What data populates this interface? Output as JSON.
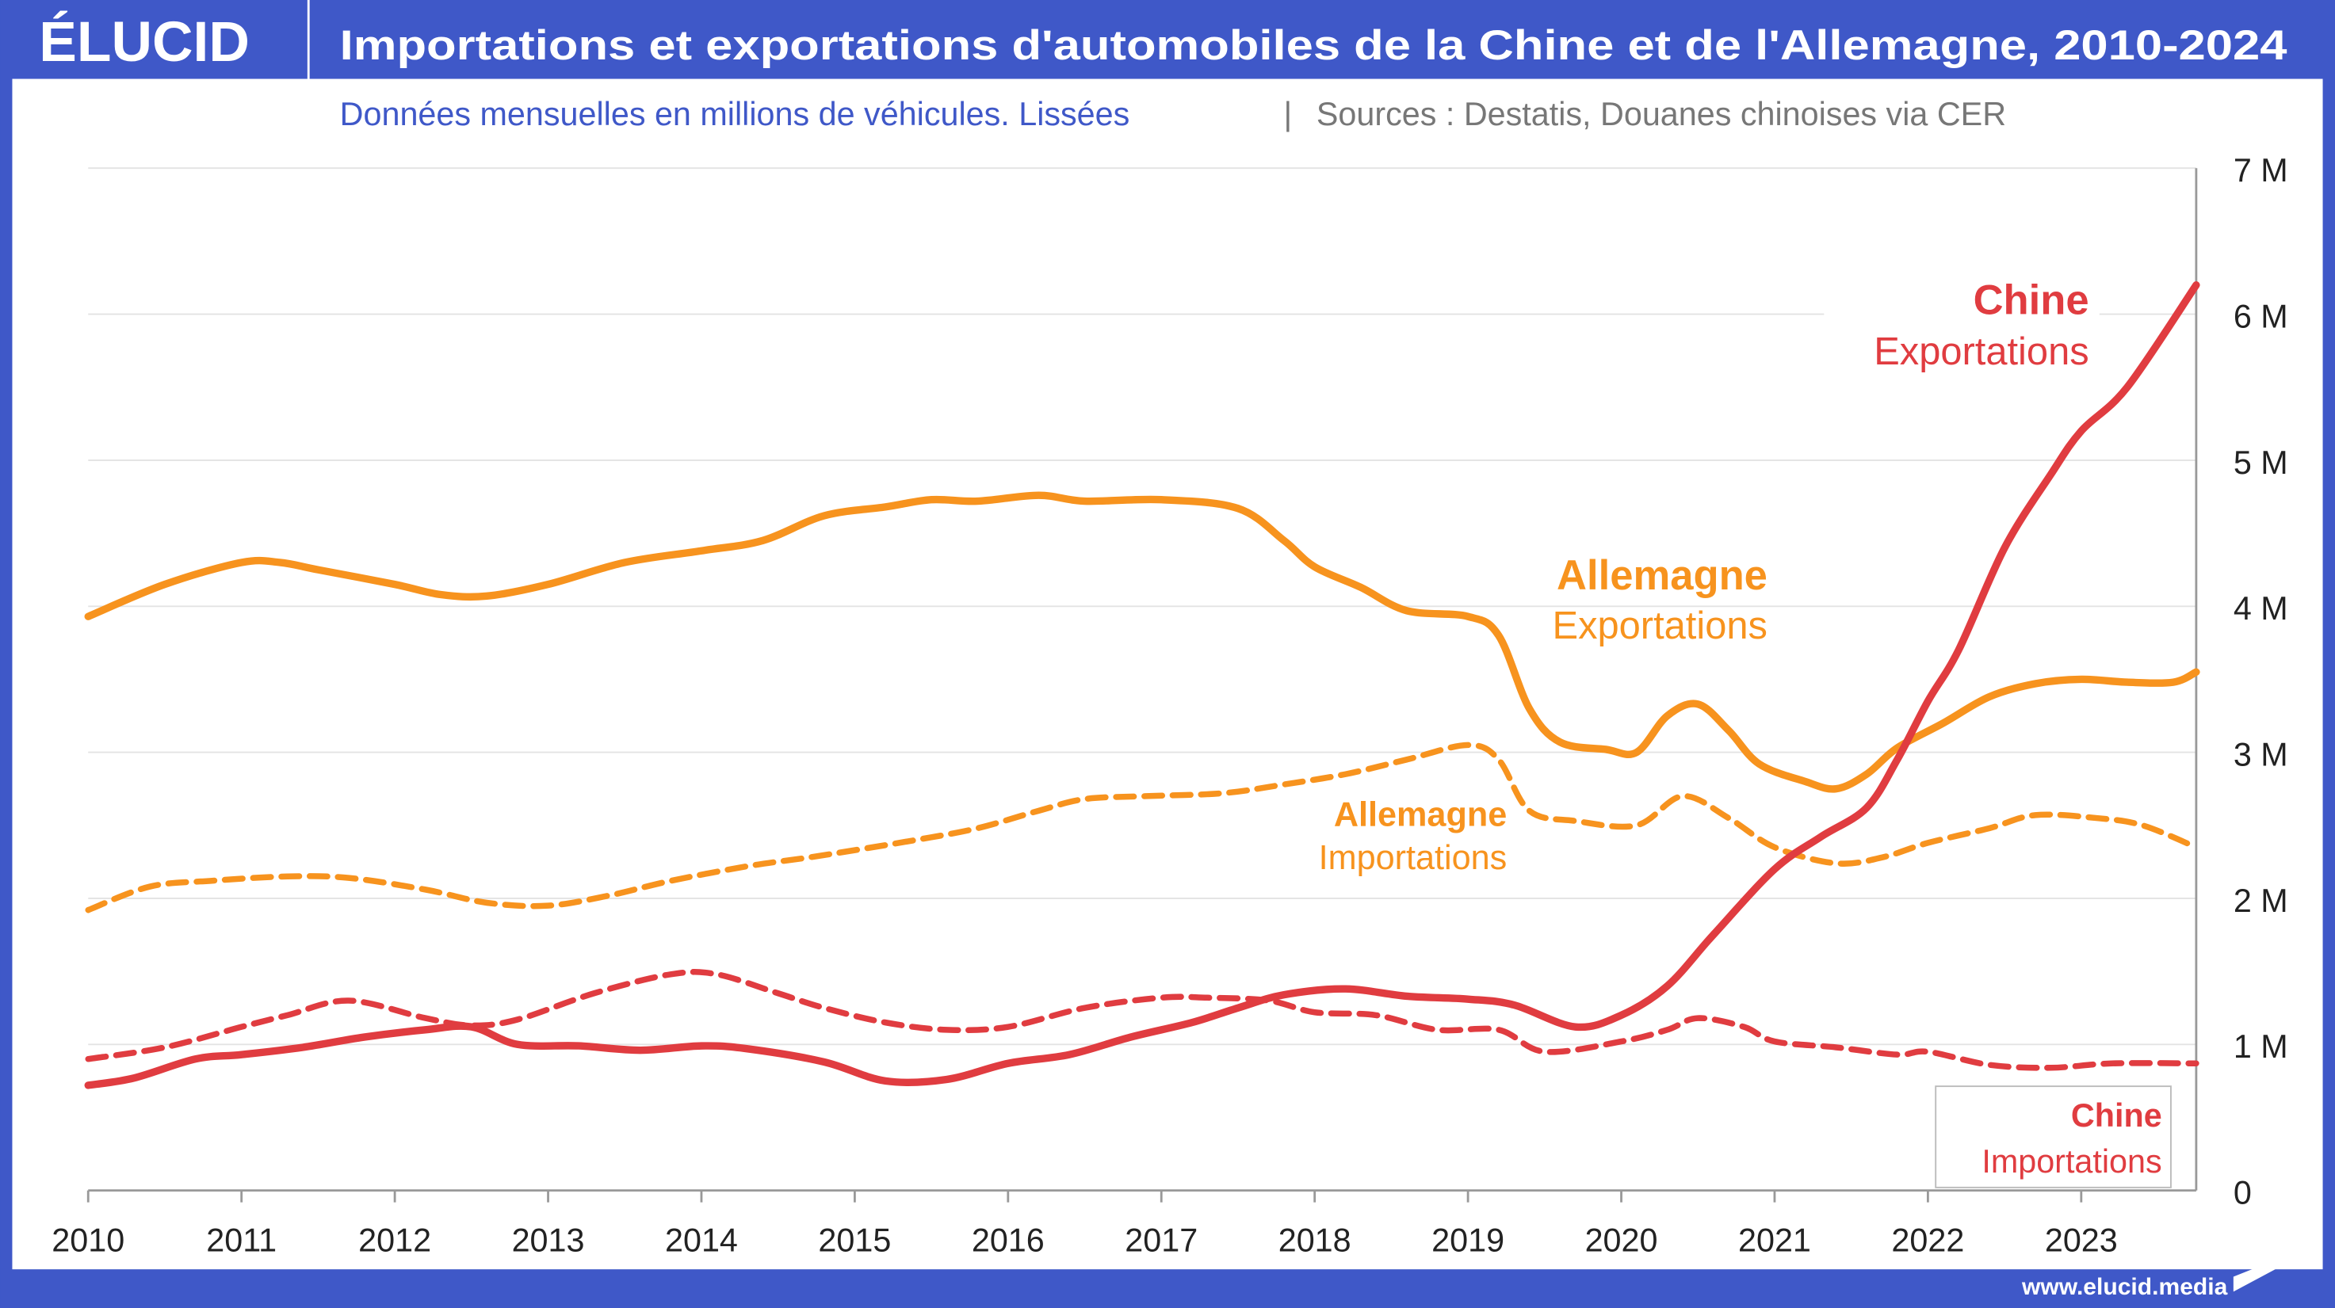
{
  "header": {
    "logo": "ÉLUCID",
    "title": "Importations et exportations d'automobiles de la Chine et de l'Allemagne, 2010-2024",
    "subtitle": "Données mensuelles en millions de véhicules. Lissées",
    "separator": "|",
    "sources": "Sources : Destatis, Douanes chinoises via CER"
  },
  "footer": {
    "url": "www.elucid.media"
  },
  "colors": {
    "frame": "#3f58c8",
    "germany": "#f7931e",
    "china": "#e03c40",
    "grid": "#e3e3e3",
    "subtitle": "#3f58c8",
    "sources": "#777777"
  },
  "chart_data": {
    "type": "line",
    "title": "Importations et exportations d'automobiles de la Chine et de l'Allemagne, 2010-2024",
    "xlabel": "",
    "ylabel": "",
    "xlim": [
      2010,
      2023.75
    ],
    "ylim": [
      0,
      7
    ],
    "grid": true,
    "y_axis_side": "right",
    "x_ticks": [
      "2010",
      "2011",
      "2012",
      "2013",
      "2014",
      "2015",
      "2016",
      "2017",
      "2018",
      "2019",
      "2020",
      "2021",
      "2022",
      "2023"
    ],
    "y_ticks": [
      "0",
      "1 M",
      "2 M",
      "3 M",
      "4 M",
      "5 M",
      "6 M",
      "7 M"
    ],
    "series": [
      {
        "name": "Allemagne",
        "sub": "Exportations",
        "color": "#f7931e",
        "dashed": false,
        "points": [
          [
            2010,
            3.93
          ],
          [
            2010.5,
            4.15
          ],
          [
            2011,
            4.3
          ],
          [
            2011.25,
            4.3
          ],
          [
            2011.5,
            4.25
          ],
          [
            2012,
            4.15
          ],
          [
            2012.3,
            4.08
          ],
          [
            2012.6,
            4.07
          ],
          [
            2013,
            4.15
          ],
          [
            2013.5,
            4.3
          ],
          [
            2014,
            4.38
          ],
          [
            2014.4,
            4.45
          ],
          [
            2014.8,
            4.62
          ],
          [
            2015.2,
            4.68
          ],
          [
            2015.5,
            4.73
          ],
          [
            2015.8,
            4.72
          ],
          [
            2016.2,
            4.76
          ],
          [
            2016.5,
            4.72
          ],
          [
            2017,
            4.73
          ],
          [
            2017.5,
            4.67
          ],
          [
            2017.8,
            4.45
          ],
          [
            2018,
            4.27
          ],
          [
            2018.3,
            4.13
          ],
          [
            2018.6,
            3.97
          ],
          [
            2019,
            3.93
          ],
          [
            2019.2,
            3.8
          ],
          [
            2019.4,
            3.3
          ],
          [
            2019.6,
            3.07
          ],
          [
            2019.9,
            3.02
          ],
          [
            2020.1,
            3.0
          ],
          [
            2020.3,
            3.25
          ],
          [
            2020.5,
            3.33
          ],
          [
            2020.7,
            3.15
          ],
          [
            2020.9,
            2.92
          ],
          [
            2021.2,
            2.8
          ],
          [
            2021.4,
            2.75
          ],
          [
            2021.6,
            2.85
          ],
          [
            2021.8,
            3.03
          ],
          [
            2022.1,
            3.2
          ],
          [
            2022.4,
            3.38
          ],
          [
            2022.7,
            3.47
          ],
          [
            2023,
            3.5
          ],
          [
            2023.3,
            3.48
          ],
          [
            2023.6,
            3.48
          ],
          [
            2023.75,
            3.55
          ]
        ]
      },
      {
        "name": "Allemagne",
        "sub": "Importations",
        "color": "#f7931e",
        "dashed": true,
        "points": [
          [
            2010,
            1.92
          ],
          [
            2010.4,
            2.08
          ],
          [
            2010.8,
            2.12
          ],
          [
            2011.3,
            2.15
          ],
          [
            2011.7,
            2.14
          ],
          [
            2012.2,
            2.06
          ],
          [
            2012.6,
            1.97
          ],
          [
            2013,
            1.95
          ],
          [
            2013.4,
            2.02
          ],
          [
            2013.8,
            2.12
          ],
          [
            2014.3,
            2.22
          ],
          [
            2014.7,
            2.28
          ],
          [
            2015,
            2.33
          ],
          [
            2015.4,
            2.4
          ],
          [
            2015.8,
            2.48
          ],
          [
            2016.2,
            2.6
          ],
          [
            2016.5,
            2.68
          ],
          [
            2016.9,
            2.7
          ],
          [
            2017.4,
            2.72
          ],
          [
            2017.8,
            2.78
          ],
          [
            2018.2,
            2.85
          ],
          [
            2018.6,
            2.95
          ],
          [
            2019,
            3.05
          ],
          [
            2019.2,
            2.95
          ],
          [
            2019.4,
            2.6
          ],
          [
            2019.7,
            2.53
          ],
          [
            2020.1,
            2.5
          ],
          [
            2020.4,
            2.7
          ],
          [
            2020.7,
            2.55
          ],
          [
            2021,
            2.35
          ],
          [
            2021.4,
            2.24
          ],
          [
            2021.7,
            2.28
          ],
          [
            2022,
            2.38
          ],
          [
            2022.4,
            2.48
          ],
          [
            2022.7,
            2.57
          ],
          [
            2023.1,
            2.55
          ],
          [
            2023.4,
            2.5
          ],
          [
            2023.75,
            2.35
          ]
        ]
      },
      {
        "name": "Chine",
        "sub": "Exportations",
        "color": "#e03c40",
        "dashed": false,
        "points": [
          [
            2010,
            0.72
          ],
          [
            2010.3,
            0.77
          ],
          [
            2010.7,
            0.9
          ],
          [
            2011,
            0.93
          ],
          [
            2011.4,
            0.98
          ],
          [
            2011.8,
            1.05
          ],
          [
            2012.2,
            1.1
          ],
          [
            2012.5,
            1.12
          ],
          [
            2012.8,
            1.0
          ],
          [
            2013.2,
            0.99
          ],
          [
            2013.6,
            0.96
          ],
          [
            2014,
            0.99
          ],
          [
            2014.3,
            0.97
          ],
          [
            2014.8,
            0.88
          ],
          [
            2015.2,
            0.75
          ],
          [
            2015.6,
            0.76
          ],
          [
            2016,
            0.87
          ],
          [
            2016.4,
            0.93
          ],
          [
            2016.8,
            1.05
          ],
          [
            2017.2,
            1.15
          ],
          [
            2017.5,
            1.25
          ],
          [
            2017.8,
            1.34
          ],
          [
            2018.2,
            1.38
          ],
          [
            2018.6,
            1.33
          ],
          [
            2019,
            1.31
          ],
          [
            2019.3,
            1.27
          ],
          [
            2019.7,
            1.12
          ],
          [
            2020,
            1.2
          ],
          [
            2020.3,
            1.4
          ],
          [
            2020.6,
            1.75
          ],
          [
            2021,
            2.2
          ],
          [
            2021.3,
            2.42
          ],
          [
            2021.6,
            2.62
          ],
          [
            2021.8,
            2.95
          ],
          [
            2022,
            3.35
          ],
          [
            2022.2,
            3.7
          ],
          [
            2022.5,
            4.4
          ],
          [
            2022.8,
            4.9
          ],
          [
            2023,
            5.2
          ],
          [
            2023.3,
            5.5
          ],
          [
            2023.75,
            6.2
          ]
        ]
      },
      {
        "name": "Chine",
        "sub": "Importations",
        "color": "#e03c40",
        "dashed": true,
        "points": [
          [
            2010,
            0.9
          ],
          [
            2010.5,
            0.98
          ],
          [
            2011,
            1.12
          ],
          [
            2011.3,
            1.2
          ],
          [
            2011.7,
            1.3
          ],
          [
            2012.2,
            1.18
          ],
          [
            2012.5,
            1.13
          ],
          [
            2012.8,
            1.17
          ],
          [
            2013.3,
            1.35
          ],
          [
            2013.8,
            1.48
          ],
          [
            2014.1,
            1.48
          ],
          [
            2014.5,
            1.35
          ],
          [
            2014.8,
            1.25
          ],
          [
            2015.2,
            1.15
          ],
          [
            2015.6,
            1.1
          ],
          [
            2016,
            1.12
          ],
          [
            2016.5,
            1.25
          ],
          [
            2017,
            1.32
          ],
          [
            2017.3,
            1.32
          ],
          [
            2017.7,
            1.3
          ],
          [
            2018,
            1.22
          ],
          [
            2018.4,
            1.2
          ],
          [
            2018.8,
            1.1
          ],
          [
            2019.2,
            1.1
          ],
          [
            2019.5,
            0.95
          ],
          [
            2020,
            1.02
          ],
          [
            2020.3,
            1.1
          ],
          [
            2020.5,
            1.18
          ],
          [
            2020.8,
            1.12
          ],
          [
            2021,
            1.02
          ],
          [
            2021.4,
            0.98
          ],
          [
            2021.8,
            0.93
          ],
          [
            2022,
            0.95
          ],
          [
            2022.4,
            0.86
          ],
          [
            2022.8,
            0.84
          ],
          [
            2023.2,
            0.87
          ],
          [
            2023.75,
            0.87
          ]
        ]
      }
    ]
  }
}
